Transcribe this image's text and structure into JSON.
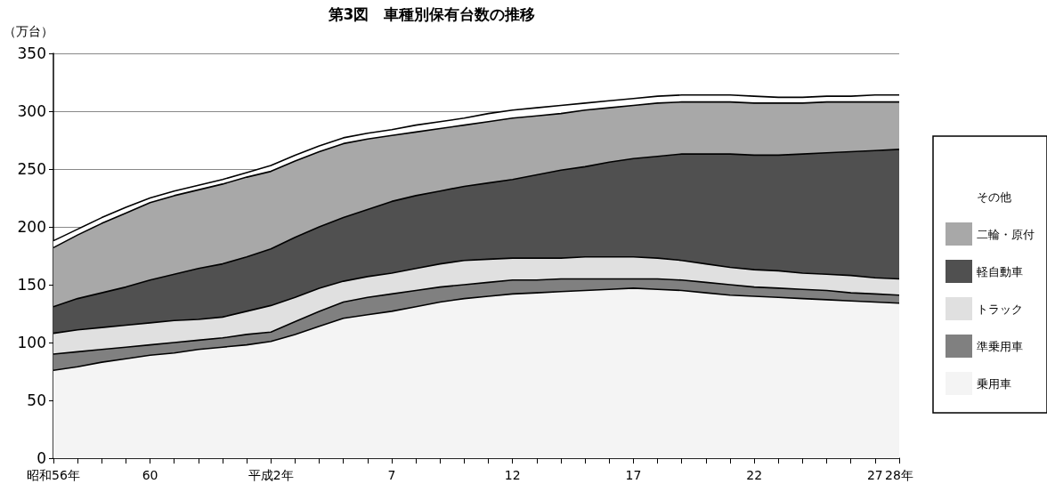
{
  "chart_data": {
    "type": "area",
    "stacked": true,
    "title": "第3図　車種別保有台数の推移",
    "ylabel": "（万台）",
    "categories": [
      "昭和56年",
      null,
      null,
      null,
      "60",
      null,
      null,
      null,
      null,
      "平成2年",
      null,
      null,
      null,
      null,
      "7",
      null,
      null,
      null,
      null,
      "12",
      null,
      null,
      null,
      null,
      "17",
      null,
      null,
      null,
      null,
      "22",
      null,
      null,
      null,
      null,
      "27",
      "28年"
    ],
    "ylim": [
      0,
      350
    ],
    "yticks": [
      0,
      50,
      100,
      150,
      200,
      250,
      300,
      350
    ],
    "grid": "y",
    "legend": "right",
    "marker": "none",
    "series": [
      {
        "name": "乗用車",
        "color": "#f4f4f4",
        "values": [
          76,
          79,
          83,
          86,
          89,
          91,
          94,
          96,
          98,
          101,
          107,
          114,
          121,
          124,
          127,
          131,
          135,
          138,
          140,
          142,
          143,
          144,
          145,
          146,
          147,
          146,
          145,
          143,
          141,
          140,
          139,
          138,
          137,
          136,
          135,
          134
        ]
      },
      {
        "name": "準乗用車",
        "color": "#808080",
        "values": [
          14,
          13,
          11,
          10,
          9,
          9,
          8,
          8,
          9,
          8,
          11,
          13,
          14,
          15,
          15,
          14,
          13,
          12,
          12,
          12,
          11,
          11,
          10,
          9,
          8,
          9,
          9,
          9,
          9,
          8,
          8,
          8,
          8,
          7,
          7,
          7
        ]
      },
      {
        "name": "トラック",
        "color": "#e0e0e0",
        "values": [
          18,
          19,
          19,
          19,
          19,
          19,
          18,
          18,
          20,
          23,
          21,
          20,
          18,
          18,
          18,
          19,
          20,
          21,
          20,
          19,
          19,
          18,
          19,
          19,
          19,
          18,
          17,
          16,
          15,
          15,
          15,
          14,
          14,
          15,
          14,
          14
        ]
      },
      {
        "name": "軽自動車",
        "color": "#505050",
        "values": [
          23,
          27,
          30,
          33,
          37,
          40,
          44,
          46,
          47,
          49,
          52,
          53,
          55,
          58,
          62,
          63,
          63,
          64,
          66,
          68,
          72,
          76,
          78,
          82,
          85,
          88,
          92,
          95,
          98,
          99,
          100,
          103,
          105,
          107,
          110,
          112
        ]
      },
      {
        "name": "二輪・原付",
        "color": "#a8a8a8",
        "values": [
          51,
          55,
          60,
          64,
          67,
          68,
          68,
          69,
          69,
          67,
          66,
          65,
          64,
          61,
          57,
          55,
          54,
          53,
          53,
          53,
          51,
          49,
          49,
          47,
          46,
          46,
          45,
          45,
          45,
          45,
          45,
          44,
          44,
          43,
          42,
          41
        ]
      },
      {
        "name": "その他",
        "color": "#ffffff",
        "values": [
          6,
          5,
          5,
          5,
          4,
          4,
          4,
          4,
          4,
          5,
          5,
          5,
          5,
          5,
          5,
          6,
          6,
          6,
          7,
          7,
          7,
          7,
          6,
          6,
          6,
          6,
          6,
          6,
          6,
          6,
          5,
          5,
          5,
          5,
          6,
          6
        ]
      }
    ]
  }
}
